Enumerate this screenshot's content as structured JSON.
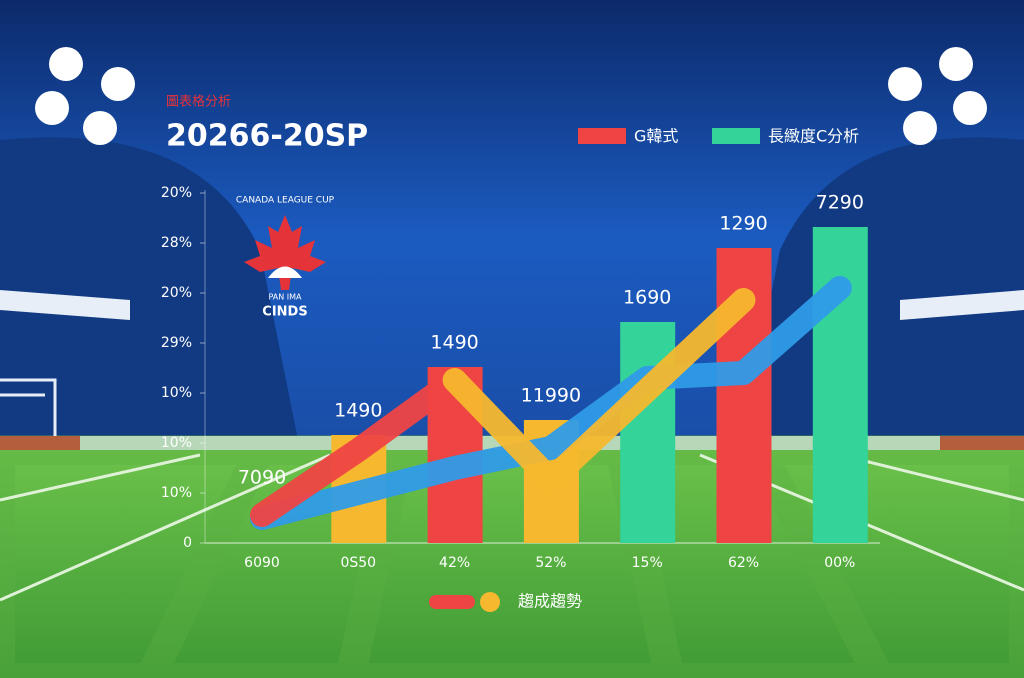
{
  "chart_data": {
    "type": "bar",
    "subtitle": "圖表格分析",
    "title": "20266-20SP",
    "logo": {
      "top": "CANADA LEAGUE CUP",
      "middle": "PAN IMA",
      "bottom": "CINDS"
    },
    "legend": [
      {
        "name": "G韓式",
        "color": "#ef4444"
      },
      {
        "name": "長緻度C分析",
        "color": "#34d399"
      }
    ],
    "trend_legend": "趨成趨勢",
    "point_label": "7090",
    "categories": [
      "6090",
      "0S50",
      "42%",
      "52%",
      "15%",
      "62%",
      "00%"
    ],
    "ylim": [
      0,
      7
    ],
    "yticks": [
      0,
      {
        "value": 1,
        "label": "10%"
      },
      {
        "value": 2,
        "label": "10%"
      },
      {
        "value": 3,
        "label": "10%"
      },
      {
        "value": 4,
        "label": "29%"
      },
      {
        "value": 5,
        "label": "20%"
      },
      {
        "value": 6,
        "label": "28%"
      },
      {
        "value": 7,
        "label": "20%"
      }
    ],
    "bars": {
      "values": [
        null,
        2.16,
        3.52,
        2.46,
        4.42,
        5.9,
        6.32
      ],
      "value_labels": [
        null,
        "1490",
        "1490",
        "11990",
        "1690",
        "1290",
        "7290"
      ],
      "colors": [
        null,
        "#f5b82e",
        "#ef4444",
        "#f5b82e",
        "#34d399",
        "#ef4444",
        "#34d399"
      ]
    },
    "series": [
      {
        "name": null,
        "color": "#2f9be8",
        "values": [
          0.5,
          1.0,
          1.5,
          1.9,
          3.3,
          3.4,
          5.1
        ]
      },
      {
        "name": null,
        "color": "#ef4444",
        "values": [
          0.56,
          1.86,
          3.26,
          null,
          null,
          null,
          null
        ]
      },
      {
        "name": null,
        "color": "#f5b82e",
        "values": [
          null,
          null,
          3.26,
          1.26,
          3.06,
          4.86,
          null
        ]
      }
    ]
  }
}
